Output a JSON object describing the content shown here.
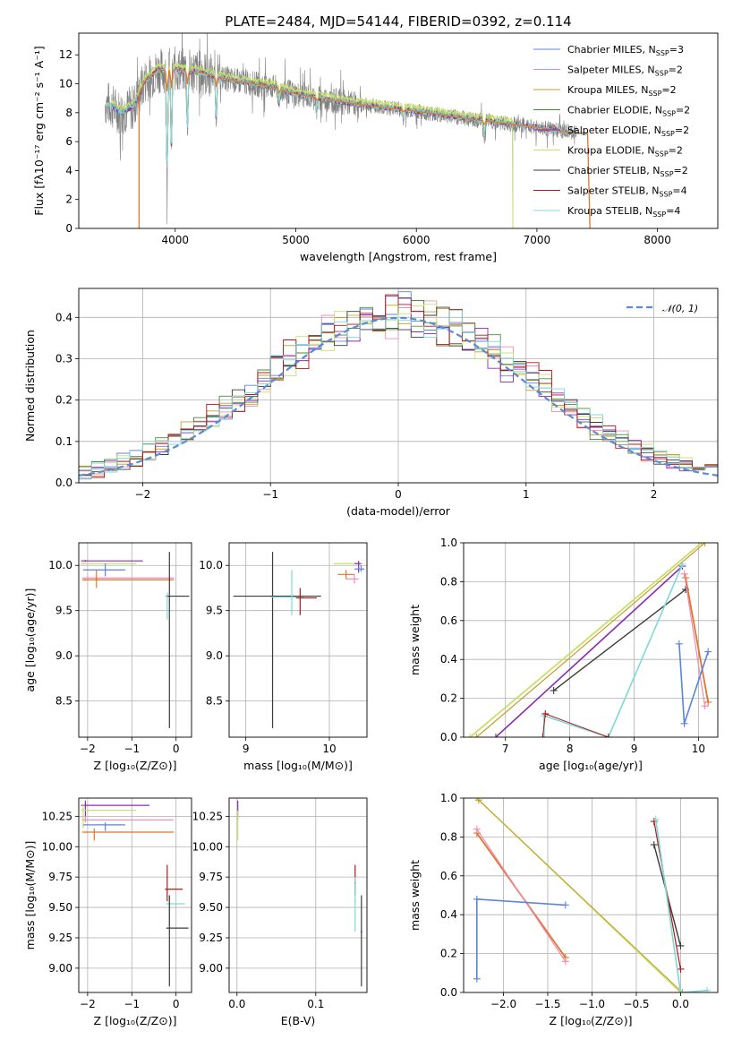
{
  "colors": {
    "chabrier_miles": "#5b84dc",
    "salpeter_miles": "#f08cb4",
    "kroupa_miles": "#c89b2e",
    "chabrier_elodie": "#4a8a3c",
    "salpeter_elodie": "#8b2db0",
    "kroupa_elodie": "#c8e06c",
    "chabrier_stelib": "#3b3b3b",
    "salpeter_stelib": "#b01818",
    "kroupa_stelib": "#7fd8d8",
    "data": "#808080",
    "orange": "#e0752d",
    "normal": "#5b8ad6"
  },
  "chart_data": [
    {
      "id": "spectrum",
      "type": "line",
      "title": "PLATE=2484, MJD=54144, FIBERID=0392, z=0.114",
      "xlabel": "wavelength [Angstrom, rest frame]",
      "ylabel": "Flux [fλ10⁻¹⁷ erg cm⁻² s⁻¹ A⁻¹]",
      "xlim": [
        3200,
        8500
      ],
      "ylim": [
        0,
        13.5
      ],
      "xticks": [
        4000,
        5000,
        6000,
        7000,
        8000
      ],
      "yticks": [
        0,
        2,
        4,
        6,
        8,
        10,
        12
      ],
      "legend_position": "top-right",
      "legend": [
        {
          "label": "Chabrier MILES, N",
          "sub": "SSP",
          "suffix": "=3",
          "color": "#5b84dc"
        },
        {
          "label": "Salpeter MILES, N",
          "sub": "SSP",
          "suffix": "=2",
          "color": "#f08cb4"
        },
        {
          "label": "Kroupa MILES, N",
          "sub": "SSP",
          "suffix": "=2",
          "color": "#c89b2e"
        },
        {
          "label": "Chabrier ELODIE, N",
          "sub": "SSP",
          "suffix": "=2",
          "color": "#4a8a3c"
        },
        {
          "label": "Salpeter ELODIE, N",
          "sub": "SSP",
          "suffix": "=2",
          "color": "#8b2db0"
        },
        {
          "label": "Kroupa ELODIE, N",
          "sub": "SSP",
          "suffix": "=2",
          "color": "#c8e06c"
        },
        {
          "label": "Chabrier STELIB, N",
          "sub": "SSP",
          "suffix": "=2",
          "color": "#3b3b3b"
        },
        {
          "label": "Salpeter STELIB, N",
          "sub": "SSP",
          "suffix": "=4",
          "color": "#b01818"
        },
        {
          "label": "Kroupa STELIB, N",
          "sub": "SSP",
          "suffix": "=4",
          "color": "#7fd8d8"
        }
      ],
      "continuum_points": [
        [
          3450,
          8.6
        ],
        [
          3550,
          8.0
        ],
        [
          3650,
          8.4
        ],
        [
          3750,
          10.2
        ],
        [
          3850,
          10.9
        ],
        [
          4000,
          11.0
        ],
        [
          4200,
          10.8
        ],
        [
          4500,
          10.2
        ],
        [
          4800,
          9.8
        ],
        [
          5000,
          9.3
        ],
        [
          5200,
          9.0
        ],
        [
          5500,
          8.6
        ],
        [
          6000,
          8.1
        ],
        [
          6500,
          7.5
        ],
        [
          7000,
          7.0
        ],
        [
          7300,
          6.6
        ]
      ],
      "absorption_lines": [
        {
          "x": 3933,
          "depth": 0.62
        },
        {
          "x": 3968,
          "depth": 0.5
        },
        {
          "x": 4101,
          "depth": 0.35
        },
        {
          "x": 4340,
          "depth": 0.28
        },
        {
          "x": 4861,
          "depth": 0.12
        },
        {
          "x": 5175,
          "depth": 0.1
        },
        {
          "x": 5893,
          "depth": 0.08
        },
        {
          "x": 6563,
          "depth": 0.15
        }
      ]
    },
    {
      "id": "residuals",
      "type": "bar",
      "xlabel": "(data-model)/error",
      "ylabel": "Normed distribution",
      "xlim": [
        -2.5,
        2.5
      ],
      "ylim": [
        0,
        0.47
      ],
      "xticks": [
        -2,
        -1,
        0,
        1,
        2
      ],
      "xtick_labels": [
        "−2",
        "−1",
        "0",
        "1",
        "2"
      ],
      "yticks": [
        0.0,
        0.1,
        0.2,
        0.3,
        0.4
      ],
      "ytick_labels": [
        "0.0",
        "0.1",
        "0.2",
        "0.3",
        "0.4"
      ],
      "bin_width": 0.1,
      "legend_position": "top-right",
      "normal_label": "𝒩(0, 1)"
    },
    {
      "id": "age-vs-Z",
      "type": "scatter",
      "xlabel": "Z [log₁₀(Z/Z⊙)]",
      "ylabel": "age  [log₁₀(age/yr)]",
      "xlim": [
        -2.2,
        0.35
      ],
      "ylim": [
        8.1,
        10.25
      ],
      "xticks": [
        -2,
        -1,
        0
      ],
      "xtick_labels": [
        "−2",
        "−1",
        "0"
      ],
      "yticks": [
        8.5,
        9.0,
        9.5,
        10.0
      ],
      "ytick_labels": [
        "8.5",
        "9.0",
        "9.5",
        "10.0"
      ],
      "points": [
        {
          "x": -2.05,
          "y": 10.05,
          "x0": -2.15,
          "x1": -0.75,
          "y0": 10.04,
          "y1": 10.06,
          "color": "#8b2db0"
        },
        {
          "x": -2.1,
          "y": 10.02,
          "x0": -2.15,
          "x1": -0.9,
          "y0": 10.01,
          "y1": 10.03,
          "color": "#c8e06c"
        },
        {
          "x": -1.6,
          "y": 9.95,
          "x0": -2.1,
          "x1": -1.15,
          "y0": 9.88,
          "y1": 10.02,
          "color": "#5b84dc"
        },
        {
          "x": -2.0,
          "y": 9.86,
          "x0": -2.12,
          "x1": -0.05,
          "y0": 9.85,
          "y1": 9.88,
          "color": "#f08cb4"
        },
        {
          "x": -2.05,
          "y": 9.84,
          "x0": -2.12,
          "x1": -0.05,
          "y0": 9.83,
          "y1": 9.85,
          "color": "#e0752d"
        },
        {
          "x": -1.8,
          "y": 9.85,
          "x0": -1.82,
          "x1": -1.78,
          "y0": 9.75,
          "y1": 9.95,
          "color": "#e0752d"
        },
        {
          "x": -0.2,
          "y": 9.66,
          "x0": -0.25,
          "x1": 0.25,
          "y0": 9.4,
          "y1": 9.7,
          "color": "#7fd8d8"
        },
        {
          "x": -0.15,
          "y": 9.66,
          "x0": -0.2,
          "x1": 0.3,
          "y0": 8.2,
          "y1": 10.15,
          "color": "#3b3b3b"
        }
      ]
    },
    {
      "id": "age-vs-mass",
      "type": "scatter",
      "xlabel": "mass [log₁₀(M/M⊙)]",
      "ylabel": "",
      "xlim": [
        8.8,
        10.45
      ],
      "ylim": [
        8.1,
        10.25
      ],
      "xticks": [
        9,
        10
      ],
      "xtick_labels": [
        "9",
        "10"
      ],
      "yticks": [
        8.5,
        9.0,
        9.5,
        10.0
      ],
      "ytick_labels": [
        "8.5",
        "9.0",
        "9.5",
        "10.0"
      ],
      "points": [
        {
          "x": 9.32,
          "y": 9.66,
          "x0": 8.85,
          "x1": 9.9,
          "y0": 8.2,
          "y1": 10.15,
          "color": "#3b3b3b"
        },
        {
          "x": 9.55,
          "y": 9.65,
          "x0": 9.3,
          "x1": 9.7,
          "y0": 9.45,
          "y1": 9.95,
          "color": "#7fd8d8"
        },
        {
          "x": 9.65,
          "y": 9.64,
          "x0": 9.6,
          "x1": 9.85,
          "y0": 9.45,
          "y1": 9.75,
          "color": "#b01818"
        },
        {
          "x": 10.3,
          "y": 9.85,
          "x0": 10.2,
          "x1": 10.35,
          "y0": 9.8,
          "y1": 9.9,
          "color": "#f08cb4"
        },
        {
          "x": 10.2,
          "y": 9.9,
          "x0": 10.1,
          "x1": 10.3,
          "y0": 9.85,
          "y1": 9.95,
          "color": "#e0752d"
        },
        {
          "x": 10.35,
          "y": 10.02,
          "x0": 10.05,
          "x1": 10.4,
          "y0": 9.92,
          "y1": 10.05,
          "color": "#c8e06c"
        },
        {
          "x": 10.35,
          "y": 10.02,
          "x0": 10.3,
          "x1": 10.38,
          "y0": 9.92,
          "y1": 10.05,
          "color": "#8b2db0"
        },
        {
          "x": 10.38,
          "y": 9.96,
          "x0": 10.3,
          "x1": 10.42,
          "y0": 9.93,
          "y1": 10.0,
          "color": "#5b84dc"
        }
      ]
    },
    {
      "id": "weight-vs-age",
      "type": "line",
      "xlabel": "age  [log₁₀(age/yr)]",
      "ylabel": "mass weight",
      "xlim": [
        6.35,
        10.3
      ],
      "ylim": [
        0,
        1.0
      ],
      "xticks": [
        7,
        8,
        9,
        10
      ],
      "xtick_labels": [
        "7",
        "8",
        "9",
        "10"
      ],
      "yticks": [
        0.0,
        0.2,
        0.4,
        0.6,
        0.8,
        1.0
      ],
      "ytick_labels": [
        "0.0",
        "0.2",
        "0.4",
        "0.6",
        "0.8",
        "1.0"
      ],
      "series": [
        {
          "color": "#c8e06c",
          "width": 1.8,
          "points": [
            [
              6.45,
              0.0
            ],
            [
              10.05,
              1.0
            ]
          ]
        },
        {
          "color": "#c89b2e",
          "width": 1.2,
          "points": [
            [
              6.55,
              0.0
            ],
            [
              10.1,
              1.0
            ]
          ]
        },
        {
          "color": "#8b2db0",
          "width": 1.6,
          "points": [
            [
              6.85,
              0.0
            ],
            [
              9.75,
              0.88
            ]
          ]
        },
        {
          "color": "#3b3b3b",
          "width": 1.4,
          "points": [
            [
              7.75,
              0.24
            ],
            [
              9.8,
              0.76
            ]
          ]
        },
        {
          "color": "#e0752d",
          "width": 1.8,
          "points": [
            [
              9.8,
              0.82
            ],
            [
              10.15,
              0.18
            ]
          ]
        },
        {
          "color": "#f08cb4",
          "width": 1.2,
          "points": [
            [
              9.78,
              0.84
            ],
            [
              10.1,
              0.16
            ]
          ]
        },
        {
          "color": "#5b84dc",
          "width": 1.6,
          "points": [
            [
              9.7,
              0.48
            ],
            [
              9.78,
              0.07
            ],
            [
              10.15,
              0.44
            ]
          ]
        },
        {
          "color": "#7fd8d8",
          "width": 1.6,
          "points": [
            [
              7.6,
              0.0
            ],
            [
              7.6,
              0.11
            ],
            [
              8.6,
              0.0
            ],
            [
              9.75,
              0.89
            ]
          ]
        },
        {
          "color": "#b01818",
          "width": 1.0,
          "points": [
            [
              7.58,
              0.0
            ],
            [
              7.62,
              0.12
            ],
            [
              8.6,
              0.0
            ]
          ]
        }
      ]
    },
    {
      "id": "mass-vs-Z",
      "type": "scatter",
      "xlabel": "Z [log₁₀(Z/Z⊙)]",
      "ylabel": "mass [log₁₀(M/M⊙)]",
      "xlim": [
        -2.2,
        0.35
      ],
      "ylim": [
        8.8,
        10.4
      ],
      "xticks": [
        -2,
        -1,
        0
      ],
      "xtick_labels": [
        "−2",
        "−1",
        "0"
      ],
      "yticks": [
        9.0,
        9.25,
        9.5,
        9.75,
        10.0,
        10.25
      ],
      "ytick_labels": [
        "9.00",
        "9.25",
        "9.50",
        "9.75",
        "10.00",
        "10.25"
      ],
      "points": [
        {
          "x": -2.05,
          "y": 10.34,
          "x0": -2.15,
          "x1": -0.6,
          "y0": 10.25,
          "y1": 10.38,
          "color": "#8b2db0"
        },
        {
          "x": -2.1,
          "y": 10.3,
          "x0": -2.15,
          "x1": -0.9,
          "y0": 10.15,
          "y1": 10.35,
          "color": "#c8e06c"
        },
        {
          "x": -2.05,
          "y": 10.22,
          "x0": -2.12,
          "x1": -0.05,
          "y0": 10.2,
          "y1": 10.25,
          "color": "#f08cb4"
        },
        {
          "x": -1.6,
          "y": 10.18,
          "x0": -2.1,
          "x1": -1.15,
          "y0": 10.13,
          "y1": 10.2,
          "color": "#5b84dc"
        },
        {
          "x": -1.85,
          "y": 10.12,
          "x0": -2.12,
          "x1": -0.05,
          "y0": 10.05,
          "y1": 10.15,
          "color": "#e0752d"
        },
        {
          "x": -0.2,
          "y": 9.65,
          "x0": -0.25,
          "x1": 0.15,
          "y0": 9.55,
          "y1": 9.85,
          "color": "#b01818"
        },
        {
          "x": -0.15,
          "y": 9.53,
          "x0": -0.22,
          "x1": 0.2,
          "y0": 9.35,
          "y1": 9.6,
          "color": "#7fd8d8"
        },
        {
          "x": -0.15,
          "y": 9.33,
          "x0": -0.22,
          "x1": 0.28,
          "y0": 8.85,
          "y1": 9.6,
          "color": "#3b3b3b"
        }
      ]
    },
    {
      "id": "mass-vs-ebv",
      "type": "scatter",
      "xlabel": "E(B-V)",
      "ylabel": "",
      "xlim": [
        -0.01,
        0.165
      ],
      "ylim": [
        8.8,
        10.4
      ],
      "xticks": [
        0.0,
        0.1
      ],
      "xtick_labels": [
        "0.0",
        "0.1"
      ],
      "yticks": [
        9.0,
        9.25,
        9.5,
        9.75,
        10.0,
        10.25
      ],
      "ytick_labels": [
        "9.00",
        "9.25",
        "9.50",
        "9.75",
        "10.00",
        "10.25"
      ],
      "points": [
        {
          "x": 0.001,
          "y": 10.3,
          "x0": 0.0,
          "x1": 0.002,
          "y0": 10.22,
          "y1": 10.38,
          "color": "#8b2db0"
        },
        {
          "x": 0.001,
          "y": 10.15,
          "x0": 0.0,
          "x1": 0.002,
          "y0": 10.05,
          "y1": 10.3,
          "color": "#c8e06c"
        },
        {
          "x": 0.15,
          "y": 9.7,
          "x0": 0.149,
          "x1": 0.151,
          "y0": 9.6,
          "y1": 9.85,
          "color": "#b01818"
        },
        {
          "x": 0.15,
          "y": 9.55,
          "x0": 0.149,
          "x1": 0.151,
          "y0": 9.3,
          "y1": 9.75,
          "color": "#7fd8d8"
        },
        {
          "x": 0.158,
          "y": 9.3,
          "x0": 0.157,
          "x1": 0.159,
          "y0": 8.85,
          "y1": 9.6,
          "color": "#3b3b3b"
        }
      ]
    },
    {
      "id": "weight-vs-Z",
      "type": "line",
      "xlabel": "Z [log₁₀(Z/Z⊙)]",
      "ylabel": "mass weight",
      "xlim": [
        -2.45,
        0.42
      ],
      "ylim": [
        0,
        1.0
      ],
      "xticks": [
        -2.0,
        -1.5,
        -1.0,
        -0.5,
        0.0
      ],
      "xtick_labels": [
        "−2.0",
        "−1.5",
        "−1.0",
        "−0.5",
        "0.0"
      ],
      "yticks": [
        0.0,
        0.2,
        0.4,
        0.6,
        0.8,
        1.0
      ],
      "ytick_labels": [
        "0.0",
        "0.2",
        "0.4",
        "0.6",
        "0.8",
        "1.0"
      ],
      "series": [
        {
          "color": "#c8e06c",
          "width": 1.6,
          "points": [
            [
              -2.3,
              1.0
            ],
            [
              0.0,
              0.0
            ]
          ]
        },
        {
          "color": "#c89b2e",
          "width": 1.0,
          "points": [
            [
              -2.28,
              0.99
            ],
            [
              0.02,
              0.0
            ]
          ]
        },
        {
          "color": "#e0752d",
          "width": 1.8,
          "points": [
            [
              -2.3,
              0.82
            ],
            [
              -1.3,
              0.18
            ]
          ]
        },
        {
          "color": "#f08cb4",
          "width": 1.2,
          "points": [
            [
              -2.3,
              0.84
            ],
            [
              -1.3,
              0.16
            ]
          ]
        },
        {
          "color": "#5b84dc",
          "width": 1.6,
          "points": [
            [
              -2.3,
              0.07
            ],
            [
              -2.3,
              0.48
            ],
            [
              -1.3,
              0.45
            ]
          ]
        },
        {
          "color": "#3b3b3b",
          "width": 1.4,
          "points": [
            [
              -0.3,
              0.76
            ],
            [
              0.0,
              0.24
            ]
          ]
        },
        {
          "color": "#b01818",
          "width": 1.2,
          "points": [
            [
              -0.3,
              0.88
            ],
            [
              0.0,
              0.12
            ]
          ]
        },
        {
          "color": "#7fd8d8",
          "width": 1.6,
          "points": [
            [
              -0.28,
              0.89
            ],
            [
              0.0,
              0.0
            ],
            [
              0.3,
              0.01
            ]
          ]
        }
      ]
    }
  ]
}
